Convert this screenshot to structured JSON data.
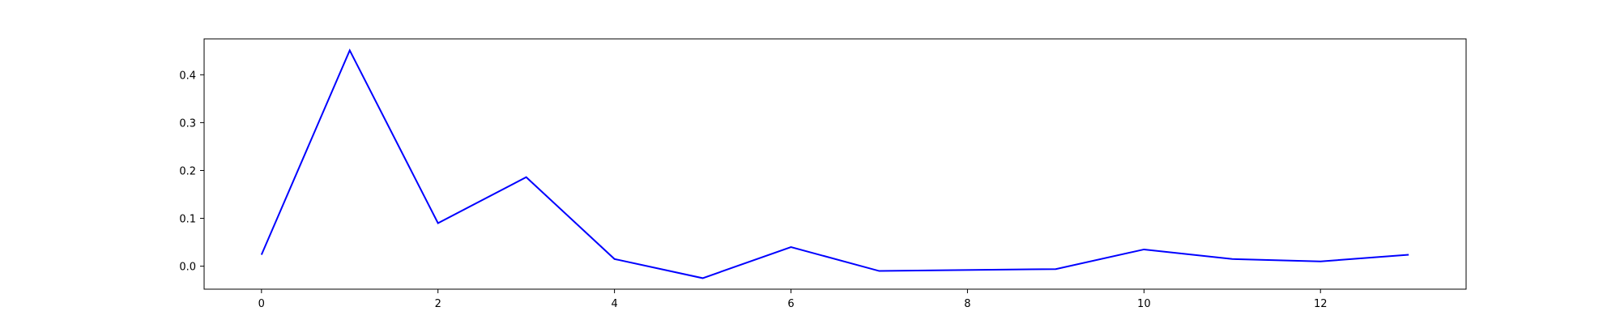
{
  "chart_data": {
    "type": "line",
    "title": "",
    "xlabel": "",
    "ylabel": "",
    "x": [
      0,
      1,
      2,
      3,
      4,
      5,
      6,
      7,
      9,
      10,
      11,
      12,
      13
    ],
    "series": [
      {
        "values": [
          0.024,
          0.451,
          0.09,
          0.186,
          0.015,
          -0.025,
          0.04,
          -0.01,
          -0.006,
          0.035,
          0.015,
          0.01,
          0.024
        ],
        "color": "#0000ff"
      }
    ],
    "xlim": [
      -0.65,
      13.65
    ],
    "ylim": [
      -0.048,
      0.475
    ],
    "xticks": [
      0,
      2,
      4,
      6,
      8,
      10,
      12
    ],
    "yticks": [
      0.0,
      0.1,
      0.2,
      0.3,
      0.4
    ],
    "xtick_labels": [
      "0",
      "2",
      "4",
      "6",
      "8",
      "10",
      "12"
    ],
    "ytick_labels": [
      "0.0",
      "0.1",
      "0.2",
      "0.3",
      "0.4"
    ],
    "grid": false,
    "legend": "none"
  }
}
